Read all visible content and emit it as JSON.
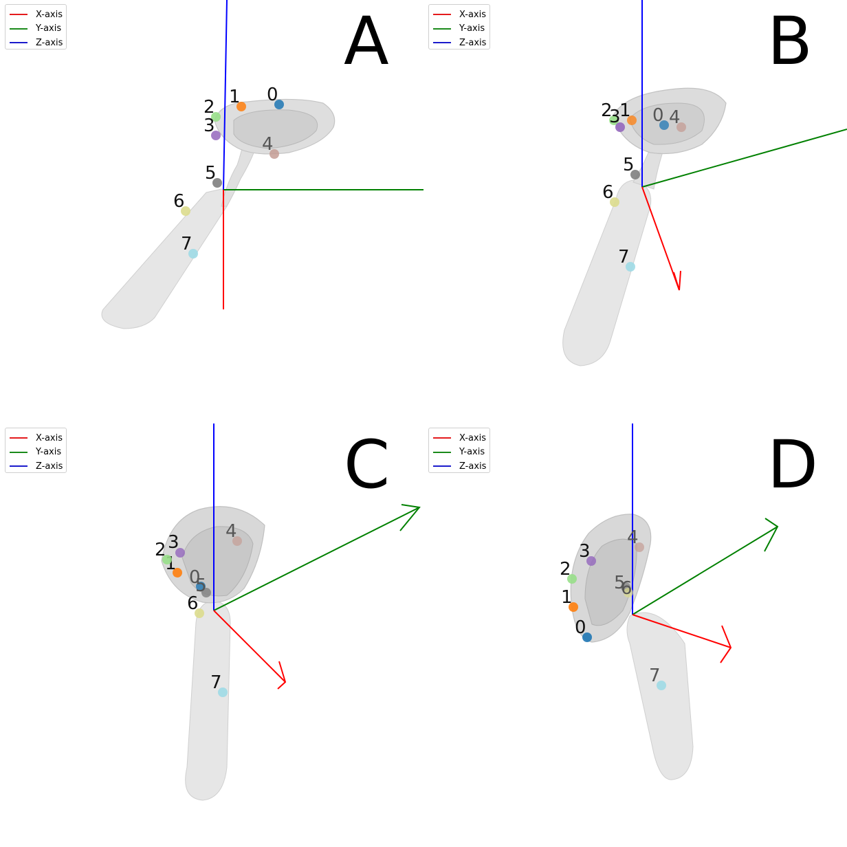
{
  "legend": {
    "items": [
      {
        "label": "X-axis",
        "color": "#e41a1c"
      },
      {
        "label": "Y-axis",
        "color": "#1a8a1a"
      },
      {
        "label": "Z-axis",
        "color": "#1a1acc"
      }
    ]
  },
  "colors": {
    "x_axis": "#ff0000",
    "y_axis": "#008000",
    "z_axis": "#0000ff",
    "bone": "#d9d9d9",
    "landmarks": [
      "#1f77b4",
      "#ff7f0e",
      "#98df8a",
      "#9467bd",
      "#c49c94",
      "#7f7f7f",
      "#dbdb8d",
      "#9edae5"
    ]
  },
  "landmark_labels": [
    "0",
    "1",
    "2",
    "3",
    "4",
    "5",
    "6",
    "7"
  ],
  "panels": [
    {
      "id": "A",
      "letter": "A"
    },
    {
      "id": "B",
      "letter": "B"
    },
    {
      "id": "C",
      "letter": "C"
    },
    {
      "id": "D",
      "letter": "D"
    }
  ]
}
